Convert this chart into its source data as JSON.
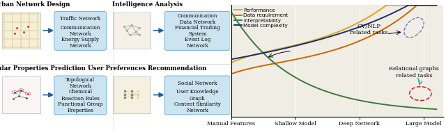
{
  "titles": [
    "Urban Network Design",
    "Intelligence Analysis",
    "Molecular Properties Prediction",
    "User Preferences Recommendation"
  ],
  "boxes": {
    "urban": [
      "Traffic Network",
      "Communication\nNetwork",
      "Energy Supply\nNetwork"
    ],
    "intelligence": [
      "Communication\nData Network",
      "Financial Trading\nSystem",
      "Event Log\nNetwork"
    ],
    "molecular": [
      "Topological\nNetwork",
      "Chemical\nReaction Rules",
      "Functional Group\nProperties"
    ],
    "user": [
      "Social Network",
      "User Knowledge\nGraph",
      "Content Similarity\nNetwork"
    ]
  },
  "xtick_labels": [
    "Manual Features",
    "Shallow Model",
    "Deep Network",
    "Large Model"
  ],
  "line_colors": {
    "performance": "#DAA520",
    "data_req": "#CD6600",
    "interp": "#3a7a3a",
    "model_comp": "#1C3070"
  },
  "line_labels": [
    "Performance",
    "Data requirement",
    "Interpretability",
    "Model complexity"
  ],
  "box_fc": "#cce4f0",
  "box_ec": "#7bafd4",
  "bg_color": "#f0ede5",
  "arrow_color": "#1f5fa0",
  "grid_color": "#ddddcc",
  "cvnlp_ellipse_color": "#5577bb",
  "rg_ellipse_color": "#cc2222",
  "cyan_arrow": "#00aacc"
}
